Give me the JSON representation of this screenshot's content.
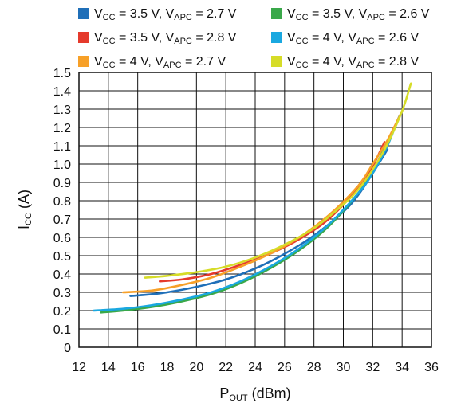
{
  "chart_data": {
    "type": "line",
    "xlabel": {
      "main": "P",
      "sub": "OUT",
      "rest": " (dBm)"
    },
    "ylabel": {
      "main": "I",
      "sub": "CC",
      "rest": " (A)"
    },
    "xlim": [
      12,
      36
    ],
    "ylim": [
      0,
      1.5
    ],
    "x_ticks": [
      "12",
      "14",
      "16",
      "18",
      "20",
      "22",
      "24",
      "26",
      "28",
      "30",
      "32",
      "34",
      "36"
    ],
    "y_ticks": [
      "0",
      "0.1",
      "0.2",
      "0.3",
      "0.4",
      "0.5",
      "0.6",
      "0.7",
      "0.8",
      "0.9",
      "1.0",
      "1.1",
      "1.2",
      "1.3",
      "1.4",
      "1.5"
    ],
    "x_tick_values": [
      12,
      14,
      16,
      18,
      20,
      22,
      24,
      26,
      28,
      30,
      32,
      34,
      36
    ],
    "y_tick_values": [
      0,
      0.1,
      0.2,
      0.3,
      0.4,
      0.5,
      0.6,
      0.7,
      0.8,
      0.9,
      1.0,
      1.1,
      1.2,
      1.3,
      1.4,
      1.5
    ],
    "grid": true,
    "legend_position": "top",
    "series": [
      {
        "legend": [
          "V",
          "CC",
          " = 3.5 V, V",
          "APC",
          " = 2.7 V"
        ],
        "color": "#1f6fb8",
        "x": [
          15.5,
          17,
          18,
          20,
          22,
          24,
          26,
          28,
          30,
          31,
          32,
          33
        ],
        "y": [
          0.28,
          0.29,
          0.3,
          0.33,
          0.37,
          0.43,
          0.51,
          0.61,
          0.74,
          0.83,
          0.95,
          1.08
        ]
      },
      {
        "legend": [
          "V",
          "CC",
          " = 3.5 V, V",
          "APC",
          " = 2.6 V"
        ],
        "color": "#3aa84a",
        "x": [
          13.5,
          15,
          17,
          19,
          21,
          23,
          25,
          27,
          29,
          31,
          32,
          33
        ],
        "y": [
          0.19,
          0.2,
          0.22,
          0.25,
          0.29,
          0.35,
          0.43,
          0.53,
          0.66,
          0.84,
          0.96,
          1.12
        ]
      },
      {
        "legend": [
          "V",
          "CC",
          " = 3.5 V, V",
          "APC",
          " = 2.8 V"
        ],
        "color": "#e53a2c",
        "x": [
          17.5,
          19,
          21,
          23,
          25,
          27,
          29,
          31,
          32,
          32.8
        ],
        "y": [
          0.36,
          0.37,
          0.4,
          0.45,
          0.51,
          0.59,
          0.7,
          0.87,
          0.99,
          1.12
        ]
      },
      {
        "legend": [
          "V",
          "CC",
          " = 4 V, V",
          "APC",
          " = 2.6 V"
        ],
        "color": "#1aa8e0",
        "x": [
          13,
          15,
          17,
          19,
          21,
          23,
          25,
          27,
          29,
          31,
          32,
          33,
          33.8
        ],
        "y": [
          0.2,
          0.21,
          0.23,
          0.26,
          0.3,
          0.36,
          0.44,
          0.54,
          0.67,
          0.84,
          0.95,
          1.1,
          1.26
        ]
      },
      {
        "legend": [
          "V",
          "CC",
          " = 4 V, V",
          "APC",
          " = 2.7 V"
        ],
        "color": "#f7a028",
        "x": [
          15,
          17,
          19,
          21,
          23,
          25,
          27,
          29,
          31,
          32,
          33,
          34
        ],
        "y": [
          0.3,
          0.31,
          0.34,
          0.38,
          0.44,
          0.51,
          0.6,
          0.72,
          0.88,
          1.0,
          1.13,
          1.29
        ]
      },
      {
        "legend": [
          "V",
          "CC",
          " = 4 V, V",
          "APC",
          " = 2.8 V"
        ],
        "color": "#d6dc28",
        "x": [
          16.5,
          18,
          20,
          22,
          24,
          26,
          28,
          30,
          31,
          32,
          33,
          34,
          34.6
        ],
        "y": [
          0.38,
          0.39,
          0.41,
          0.44,
          0.49,
          0.56,
          0.65,
          0.78,
          0.86,
          0.97,
          1.11,
          1.29,
          1.44
        ]
      }
    ]
  }
}
